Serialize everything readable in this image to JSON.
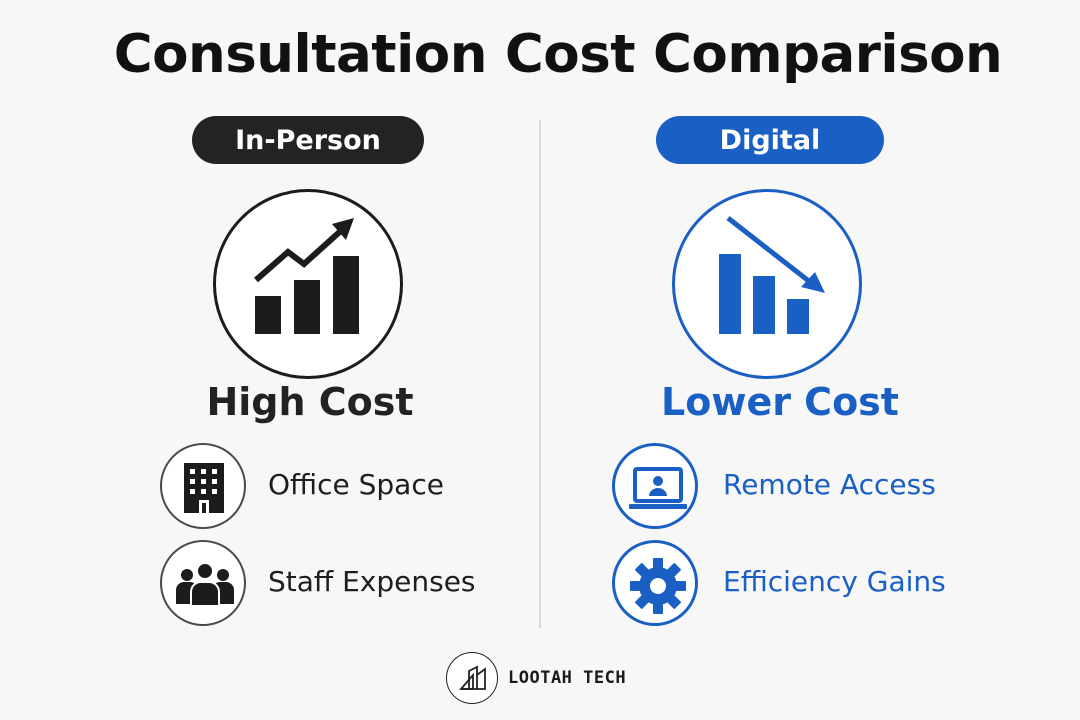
{
  "title": "Consultation Cost Comparison",
  "colors": {
    "dark": "#1c1c1c",
    "blue": "#1a5fc4",
    "background": "#f7f7f7"
  },
  "in_person": {
    "label": "In-Person",
    "icon": "rising-bar-chart-icon",
    "heading": "High Cost",
    "items": [
      {
        "label": "Office Space",
        "icon": "office-building-icon"
      },
      {
        "label": "Staff Expenses",
        "icon": "people-group-icon"
      }
    ]
  },
  "digital": {
    "label": "Digital",
    "icon": "falling-bar-chart-icon",
    "heading": "Lower Cost",
    "items": [
      {
        "label": "Remote Access",
        "icon": "laptop-user-icon"
      },
      {
        "label": "Efficiency Gains",
        "icon": "gear-icon"
      }
    ]
  },
  "brand": {
    "name": "LOOTAH TECH",
    "icon": "lootah-logo-icon"
  }
}
